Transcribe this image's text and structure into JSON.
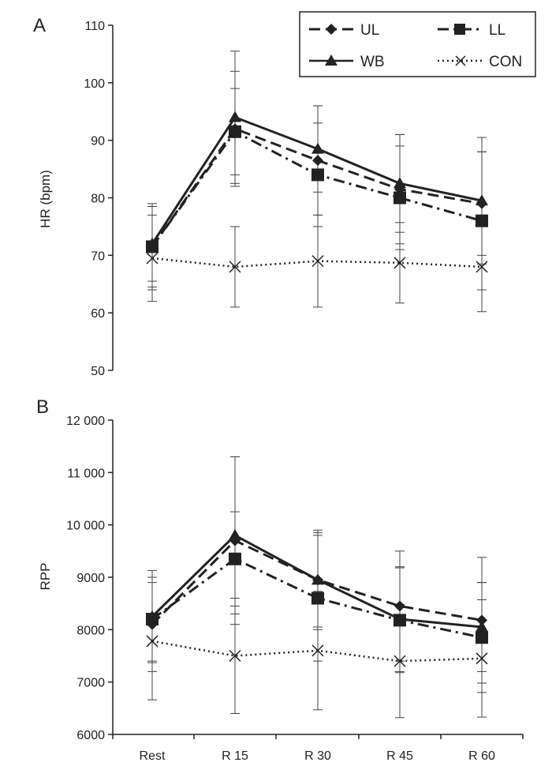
{
  "legend": [
    {
      "key": "UL",
      "label": "UL",
      "dash": "14,7",
      "marker": "diamond"
    },
    {
      "key": "LL",
      "label": "LL",
      "dash": "14,6,3,6",
      "marker": "square"
    },
    {
      "key": "WB",
      "label": "WB",
      "dash": "",
      "marker": "triangle"
    },
    {
      "key": "CON",
      "label": "CON",
      "dash": "2,4",
      "marker": "x"
    }
  ],
  "chart_data": [
    {
      "type": "line",
      "panel": "A",
      "title": "",
      "xlabel": "",
      "ylabel": "HR (bpm)",
      "categories": [
        "Rest",
        "R 15",
        "R 30",
        "R 45",
        "R 60"
      ],
      "ylim": [
        50,
        110
      ],
      "yticks": [
        50,
        60,
        70,
        80,
        90,
        100,
        110
      ],
      "ytick_labels": [
        "50",
        "60",
        "70",
        "80",
        "90",
        "100",
        "110"
      ],
      "series": [
        {
          "name": "UL",
          "values": [
            71.5,
            92.0,
            86.5,
            81.5,
            79.0
          ],
          "error": [
            7.5,
            10.0,
            9.5,
            9.5,
            9.0
          ]
        },
        {
          "name": "LL",
          "values": [
            71.5,
            91.5,
            84.0,
            80.0,
            76.0
          ],
          "error": [
            7.0,
            7.5,
            9.0,
            9.0,
            12.0
          ]
        },
        {
          "name": "WB",
          "values": [
            72.0,
            94.0,
            88.5,
            82.5,
            79.5
          ],
          "error": [
            6.5,
            11.5,
            7.5,
            8.5,
            11.0
          ]
        },
        {
          "name": "CON",
          "values": [
            69.5,
            68.0,
            69.0,
            68.7,
            68.0
          ],
          "error": [
            7.5,
            7.0,
            8.0,
            7.0,
            7.8
          ]
        }
      ]
    },
    {
      "type": "line",
      "panel": "B",
      "title": "",
      "xlabel": "",
      "ylabel": "RPP",
      "categories": [
        "Rest",
        "R 15",
        "R 30",
        "R 45",
        "R 60"
      ],
      "ylim": [
        6000,
        12000
      ],
      "yticks": [
        6000,
        7000,
        8000,
        9000,
        10000,
        11000,
        12000
      ],
      "ytick_labels": [
        "6000",
        "7000",
        "8000",
        "9000",
        "10 000",
        "11 000",
        "12 000"
      ],
      "series": [
        {
          "name": "UL",
          "values": [
            8100,
            9700,
            8950,
            8450,
            8180
          ],
          "error": [
            900,
            1600,
            950,
            1050,
            1200
          ]
        },
        {
          "name": "LL",
          "values": [
            8200,
            9350,
            8600,
            8180,
            7850
          ],
          "error": [
            800,
            900,
            1200,
            1000,
            1050
          ]
        },
        {
          "name": "WB",
          "values": [
            8250,
            9800,
            8950,
            8200,
            8050
          ],
          "error": [
            880,
            1500,
            900,
            1000,
            850
          ]
        },
        {
          "name": "CON",
          "values": [
            7780,
            7500,
            7600,
            7400,
            7450
          ],
          "error": [
            1120,
            1100,
            1130,
            1080,
            1120
          ]
        }
      ]
    }
  ]
}
